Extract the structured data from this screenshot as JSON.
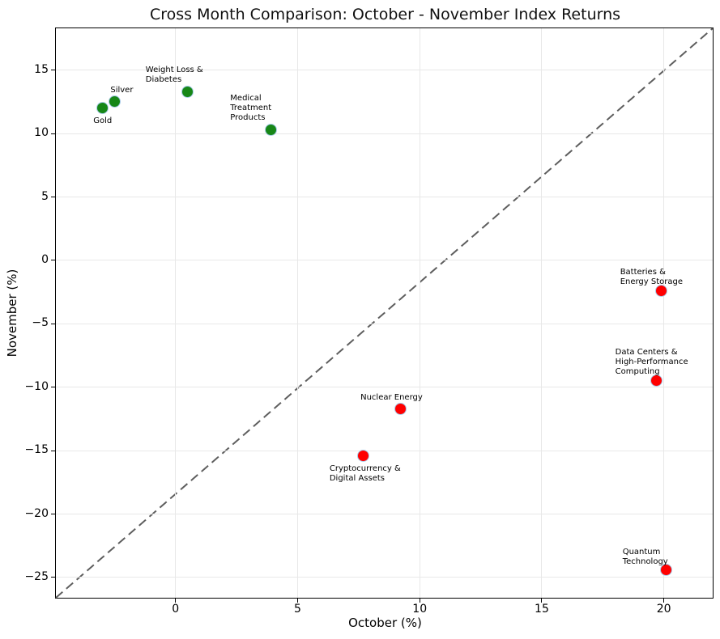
{
  "chart_data": {
    "type": "scatter",
    "title": "Cross Month Comparison: October - November Index Returns",
    "xlabel": "October (%)",
    "ylabel": "November (%)",
    "xlim": [
      -4.9,
      22.0
    ],
    "ylim": [
      -26.6,
      18.3
    ],
    "xticks": [
      0,
      5,
      10,
      15,
      20
    ],
    "yticks": [
      15,
      10,
      5,
      0,
      -5,
      -10,
      -15,
      -20,
      -25
    ],
    "grid": true,
    "grid_color": "#e8e8e8",
    "marker_edge_color": "#a8cbe8",
    "diagonal_reference_line": {
      "style": "dashed",
      "color": "#4d4d4d",
      "description": "diagonal guide from bottom-left corner to top-right corner"
    },
    "points": [
      {
        "label": "Gold",
        "x": -3.0,
        "y": 12.0,
        "color": "#178717",
        "label_offset": [
          -11,
          10
        ]
      },
      {
        "label": "Silver",
        "x": -2.5,
        "y": 12.5,
        "color": "#178717",
        "label_offset": [
          -5,
          -20
        ]
      },
      {
        "label": "Weight Loss &\nDiabetes",
        "x": 0.5,
        "y": 13.3,
        "color": "#178717",
        "label_offset": [
          -52,
          -32
        ]
      },
      {
        "label": "Medical\nTreatment\nProducts",
        "x": 3.9,
        "y": 10.3,
        "color": "#178717",
        "label_offset": [
          -50,
          -44
        ]
      },
      {
        "label": "Nuclear Energy",
        "x": 9.2,
        "y": -11.7,
        "color": "#ff0000",
        "label_offset": [
          -49,
          -19
        ]
      },
      {
        "label": "Cryptocurrency &\nDigital Assets",
        "x": 7.7,
        "y": -15.4,
        "color": "#ff0000",
        "label_offset": [
          -42,
          11
        ]
      },
      {
        "label": "Batteries &\nEnergy Storage",
        "x": 19.9,
        "y": -2.4,
        "color": "#ff0000",
        "label_offset": [
          -51,
          -29
        ]
      },
      {
        "label": "Data Centers &\nHigh-Performance\nComputing",
        "x": 19.7,
        "y": -9.5,
        "color": "#ff0000",
        "label_offset": [
          -51,
          -41
        ]
      },
      {
        "label": "Quantum\nTechnology",
        "x": 20.1,
        "y": -24.4,
        "color": "#ff0000",
        "label_offset": [
          -54,
          -28
        ]
      }
    ]
  }
}
